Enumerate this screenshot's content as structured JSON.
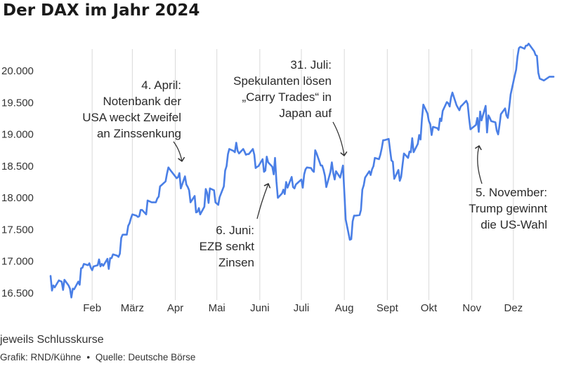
{
  "title": "Der DAX im Jahr 2024",
  "colors": {
    "line": "#4a7fe6",
    "grid": "#d9d9d9",
    "text": "#333333"
  },
  "footer": {
    "note": "jeweils Schlusskurse",
    "credit": "Grafik: RND/Kühne",
    "source": "Quelle: Deutsche Börse",
    "separator": "•"
  },
  "chart_data": {
    "type": "line",
    "title": "Der DAX im Jahr 2024",
    "ylim": [
      16500,
      20400
    ],
    "y_ticks": [
      16500,
      17000,
      17500,
      18000,
      18500,
      19000,
      19500,
      20000
    ],
    "y_tick_labels": [
      "16.500",
      "17.000",
      "17.500",
      "18.000",
      "18.500",
      "19.000",
      "19.500",
      "20.000"
    ],
    "x_ticks": [
      {
        "label": "Feb",
        "date": "2024-02-01"
      },
      {
        "label": "März",
        "date": "2024-03-01"
      },
      {
        "label": "Apr",
        "date": "2024-04-01"
      },
      {
        "label": "Mai",
        "date": "2024-05-01"
      },
      {
        "label": "Juni",
        "date": "2024-06-01"
      },
      {
        "label": "Juli",
        "date": "2024-07-01"
      },
      {
        "label": "Aug",
        "date": "2024-08-01"
      },
      {
        "label": "Sept",
        "date": "2024-09-01"
      },
      {
        "label": "Okt",
        "date": "2024-10-01"
      },
      {
        "label": "Nov",
        "date": "2024-11-01"
      },
      {
        "label": "Dez",
        "date": "2024-12-01"
      }
    ],
    "grid": "vertical",
    "series": [
      {
        "points": [
          [
            "2024-01-02",
            16770
          ],
          [
            "2024-01-03",
            16540
          ],
          [
            "2024-01-04",
            16620
          ],
          [
            "2024-01-05",
            16590
          ],
          [
            "2024-01-08",
            16700
          ],
          [
            "2024-01-09",
            16690
          ],
          [
            "2024-01-10",
            16680
          ],
          [
            "2024-01-11",
            16550
          ],
          [
            "2024-01-12",
            16710
          ],
          [
            "2024-01-15",
            16620
          ],
          [
            "2024-01-16",
            16570
          ],
          [
            "2024-01-17",
            16430
          ],
          [
            "2024-01-18",
            16570
          ],
          [
            "2024-01-19",
            16560
          ],
          [
            "2024-01-22",
            16680
          ],
          [
            "2024-01-23",
            16630
          ],
          [
            "2024-01-24",
            16890
          ],
          [
            "2024-01-25",
            16900
          ],
          [
            "2024-01-26",
            16960
          ],
          [
            "2024-01-29",
            16940
          ],
          [
            "2024-01-30",
            16970
          ],
          [
            "2024-01-31",
            16900
          ],
          [
            "2024-02-01",
            16860
          ],
          [
            "2024-02-02",
            16920
          ],
          [
            "2024-02-05",
            16940
          ],
          [
            "2024-02-06",
            17030
          ],
          [
            "2024-02-07",
            16920
          ],
          [
            "2024-02-08",
            16960
          ],
          [
            "2024-02-09",
            16930
          ],
          [
            "2024-02-12",
            17040
          ],
          [
            "2024-02-13",
            16880
          ],
          [
            "2024-02-14",
            17050
          ],
          [
            "2024-02-15",
            17050
          ],
          [
            "2024-02-16",
            17110
          ],
          [
            "2024-02-19",
            17090
          ],
          [
            "2024-02-20",
            17070
          ],
          [
            "2024-02-21",
            17120
          ],
          [
            "2024-02-22",
            17370
          ],
          [
            "2024-02-23",
            17420
          ],
          [
            "2024-02-26",
            17420
          ],
          [
            "2024-02-27",
            17560
          ],
          [
            "2024-02-28",
            17600
          ],
          [
            "2024-02-29",
            17680
          ],
          [
            "2024-03-01",
            17740
          ],
          [
            "2024-03-04",
            17720
          ],
          [
            "2024-03-05",
            17700
          ],
          [
            "2024-03-06",
            17710
          ],
          [
            "2024-03-07",
            17810
          ],
          [
            "2024-03-08",
            17810
          ],
          [
            "2024-03-11",
            17740
          ],
          [
            "2024-03-12",
            17960
          ],
          [
            "2024-03-13",
            17950
          ],
          [
            "2024-03-14",
            17940
          ],
          [
            "2024-03-15",
            17930
          ],
          [
            "2024-03-18",
            17930
          ],
          [
            "2024-03-19",
            17990
          ],
          [
            "2024-03-20",
            18020
          ],
          [
            "2024-03-21",
            18180
          ],
          [
            "2024-03-22",
            18200
          ],
          [
            "2024-03-25",
            18260
          ],
          [
            "2024-03-26",
            18380
          ],
          [
            "2024-03-27",
            18480
          ],
          [
            "2024-03-28",
            18450
          ],
          [
            "2024-04-02",
            18310
          ],
          [
            "2024-04-03",
            18330
          ],
          [
            "2024-04-04",
            18390
          ],
          [
            "2024-04-05",
            18150
          ],
          [
            "2024-04-08",
            18340
          ],
          [
            "2024-04-09",
            18210
          ],
          [
            "2024-04-10",
            18170
          ],
          [
            "2024-04-11",
            18120
          ],
          [
            "2024-04-12",
            17930
          ],
          [
            "2024-04-15",
            18030
          ],
          [
            "2024-04-16",
            17770
          ],
          [
            "2024-04-17",
            17780
          ],
          [
            "2024-04-18",
            17840
          ],
          [
            "2024-04-19",
            17740
          ],
          [
            "2024-04-22",
            17860
          ],
          [
            "2024-04-23",
            18140
          ],
          [
            "2024-04-24",
            18080
          ],
          [
            "2024-04-25",
            17920
          ],
          [
            "2024-04-26",
            18150
          ],
          [
            "2024-04-29",
            18120
          ],
          [
            "2024-04-30",
            17930
          ],
          [
            "2024-05-02",
            17890
          ],
          [
            "2024-05-03",
            18010
          ],
          [
            "2024-05-06",
            18180
          ],
          [
            "2024-05-07",
            18430
          ],
          [
            "2024-05-08",
            18500
          ],
          [
            "2024-05-09",
            18690
          ],
          [
            "2024-05-10",
            18770
          ],
          [
            "2024-05-13",
            18740
          ],
          [
            "2024-05-14",
            18720
          ],
          [
            "2024-05-15",
            18870
          ],
          [
            "2024-05-16",
            18740
          ],
          [
            "2024-05-17",
            18700
          ],
          [
            "2024-05-20",
            18770
          ],
          [
            "2024-05-21",
            18730
          ],
          [
            "2024-05-22",
            18680
          ],
          [
            "2024-05-23",
            18690
          ],
          [
            "2024-05-24",
            18690
          ],
          [
            "2024-05-27",
            18770
          ],
          [
            "2024-05-28",
            18680
          ],
          [
            "2024-05-29",
            18470
          ],
          [
            "2024-05-30",
            18490
          ],
          [
            "2024-05-31",
            18500
          ],
          [
            "2024-06-03",
            18610
          ],
          [
            "2024-06-04",
            18410
          ],
          [
            "2024-06-05",
            18430
          ],
          [
            "2024-06-06",
            18650
          ],
          [
            "2024-06-07",
            18560
          ],
          [
            "2024-06-10",
            18490
          ],
          [
            "2024-06-11",
            18370
          ],
          [
            "2024-06-12",
            18630
          ],
          [
            "2024-06-13",
            18260
          ],
          [
            "2024-06-14",
            18000
          ],
          [
            "2024-06-17",
            18070
          ],
          [
            "2024-06-18",
            18130
          ],
          [
            "2024-06-19",
            18060
          ],
          [
            "2024-06-20",
            18250
          ],
          [
            "2024-06-21",
            18160
          ],
          [
            "2024-06-24",
            18330
          ],
          [
            "2024-06-25",
            18170
          ],
          [
            "2024-06-26",
            18150
          ],
          [
            "2024-06-27",
            18210
          ],
          [
            "2024-06-28",
            18230
          ],
          [
            "2024-07-01",
            18290
          ],
          [
            "2024-07-02",
            18160
          ],
          [
            "2024-07-03",
            18370
          ],
          [
            "2024-07-04",
            18450
          ],
          [
            "2024-07-05",
            18480
          ],
          [
            "2024-07-08",
            18470
          ],
          [
            "2024-07-09",
            18430
          ],
          [
            "2024-07-10",
            18410
          ],
          [
            "2024-07-11",
            18750
          ],
          [
            "2024-07-12",
            18700
          ],
          [
            "2024-07-15",
            18510
          ],
          [
            "2024-07-16",
            18510
          ],
          [
            "2024-07-17",
            18440
          ],
          [
            "2024-07-18",
            18350
          ],
          [
            "2024-07-19",
            18170
          ],
          [
            "2024-07-22",
            18410
          ],
          [
            "2024-07-23",
            18560
          ],
          [
            "2024-07-24",
            18390
          ],
          [
            "2024-07-25",
            18290
          ],
          [
            "2024-07-26",
            18420
          ],
          [
            "2024-07-29",
            18320
          ],
          [
            "2024-07-30",
            18410
          ],
          [
            "2024-07-31",
            18510
          ],
          [
            "2024-08-01",
            18080
          ],
          [
            "2024-08-02",
            17660
          ],
          [
            "2024-08-05",
            17340
          ],
          [
            "2024-08-06",
            17350
          ],
          [
            "2024-08-07",
            17630
          ],
          [
            "2024-08-08",
            17720
          ],
          [
            "2024-08-09",
            17720
          ],
          [
            "2024-08-12",
            17730
          ],
          [
            "2024-08-13",
            17810
          ],
          [
            "2024-08-14",
            18130
          ],
          [
            "2024-08-15",
            18200
          ],
          [
            "2024-08-16",
            18320
          ],
          [
            "2024-08-19",
            18420
          ],
          [
            "2024-08-20",
            18360
          ],
          [
            "2024-08-21",
            18450
          ],
          [
            "2024-08-22",
            18500
          ],
          [
            "2024-08-23",
            18630
          ],
          [
            "2024-08-26",
            18610
          ],
          [
            "2024-08-27",
            18680
          ],
          [
            "2024-08-28",
            18780
          ],
          [
            "2024-08-29",
            18910
          ],
          [
            "2024-08-30",
            18910
          ],
          [
            "2024-09-02",
            18930
          ],
          [
            "2024-09-03",
            18750
          ],
          [
            "2024-09-04",
            18590
          ],
          [
            "2024-09-05",
            18570
          ],
          [
            "2024-09-06",
            18300
          ],
          [
            "2024-09-09",
            18440
          ],
          [
            "2024-09-10",
            18270
          ],
          [
            "2024-09-11",
            18330
          ],
          [
            "2024-09-12",
            18520
          ],
          [
            "2024-09-13",
            18700
          ],
          [
            "2024-09-16",
            18630
          ],
          [
            "2024-09-17",
            18730
          ],
          [
            "2024-09-18",
            18720
          ],
          [
            "2024-09-19",
            18940
          ],
          [
            "2024-09-20",
            18720
          ],
          [
            "2024-09-23",
            18850
          ],
          [
            "2024-09-24",
            18990
          ],
          [
            "2024-09-25",
            18920
          ],
          [
            "2024-09-26",
            19240
          ],
          [
            "2024-09-27",
            19470
          ],
          [
            "2024-09-30",
            19330
          ],
          [
            "2024-10-01",
            19210
          ],
          [
            "2024-10-02",
            19160
          ],
          [
            "2024-10-03",
            18990
          ],
          [
            "2024-10-04",
            19120
          ],
          [
            "2024-10-07",
            19100
          ],
          [
            "2024-10-08",
            19070
          ],
          [
            "2024-10-09",
            19250
          ],
          [
            "2024-10-10",
            19210
          ],
          [
            "2024-10-11",
            19370
          ],
          [
            "2024-10-14",
            19510
          ],
          [
            "2024-10-15",
            19490
          ],
          [
            "2024-10-16",
            19440
          ],
          [
            "2024-10-17",
            19580
          ],
          [
            "2024-10-18",
            19660
          ],
          [
            "2024-10-21",
            19460
          ],
          [
            "2024-10-22",
            19420
          ],
          [
            "2024-10-23",
            19380
          ],
          [
            "2024-10-24",
            19440
          ],
          [
            "2024-10-25",
            19460
          ],
          [
            "2024-10-28",
            19530
          ],
          [
            "2024-10-29",
            19480
          ],
          [
            "2024-10-30",
            19260
          ],
          [
            "2024-10-31",
            19080
          ],
          [
            "2024-11-04",
            19150
          ],
          [
            "2024-11-05",
            19260
          ],
          [
            "2024-11-06",
            19040
          ],
          [
            "2024-11-07",
            19360
          ],
          [
            "2024-11-08",
            19220
          ],
          [
            "2024-11-11",
            19450
          ],
          [
            "2024-11-12",
            19030
          ],
          [
            "2024-11-13",
            19300
          ],
          [
            "2024-11-14",
            19260
          ],
          [
            "2024-11-15",
            19210
          ],
          [
            "2024-11-18",
            19190
          ],
          [
            "2024-11-19",
            19060
          ],
          [
            "2024-11-20",
            19000
          ],
          [
            "2024-11-21",
            19150
          ],
          [
            "2024-11-22",
            19320
          ],
          [
            "2024-11-25",
            19410
          ],
          [
            "2024-11-26",
            19300
          ],
          [
            "2024-11-27",
            19260
          ],
          [
            "2024-11-28",
            19430
          ],
          [
            "2024-11-29",
            19630
          ],
          [
            "2024-12-02",
            19930
          ],
          [
            "2024-12-03",
            20020
          ],
          [
            "2024-12-04",
            20230
          ],
          [
            "2024-12-05",
            20360
          ],
          [
            "2024-12-06",
            20380
          ],
          [
            "2024-12-09",
            20350
          ],
          [
            "2024-12-10",
            20400
          ],
          [
            "2024-12-11",
            20400
          ],
          [
            "2024-12-12",
            20430
          ],
          [
            "2024-12-13",
            20400
          ],
          [
            "2024-12-16",
            20310
          ],
          [
            "2024-12-17",
            20250
          ],
          [
            "2024-12-18",
            20240
          ],
          [
            "2024-12-19",
            19970
          ],
          [
            "2024-12-20",
            19880
          ],
          [
            "2024-12-23",
            19850
          ],
          [
            "2024-12-27",
            19910
          ],
          [
            "2024-12-30",
            19910
          ]
        ]
      }
    ],
    "annotations": [
      {
        "lines": [
          "4. April:",
          "Notenbank der",
          "USA weckt Zweifel",
          "an Zinssenkung"
        ],
        "date": "2024-04-04",
        "value": 18390,
        "align": "end"
      },
      {
        "lines": [
          "31. Juli:",
          "Spekulanten lösen",
          "„Carry Trades“ in",
          "Japan auf"
        ],
        "date": "2024-07-31",
        "value": 18510,
        "align": "end"
      },
      {
        "lines": [
          "6. Juni:",
          "EZB senkt",
          "Zinsen"
        ],
        "date": "2024-06-06",
        "value": 18650,
        "align": "end"
      },
      {
        "lines": [
          "5. November:",
          "Trump gewinnt",
          "die US-Wahl"
        ],
        "date": "2024-11-05",
        "value": 19260,
        "align": "end"
      }
    ]
  }
}
